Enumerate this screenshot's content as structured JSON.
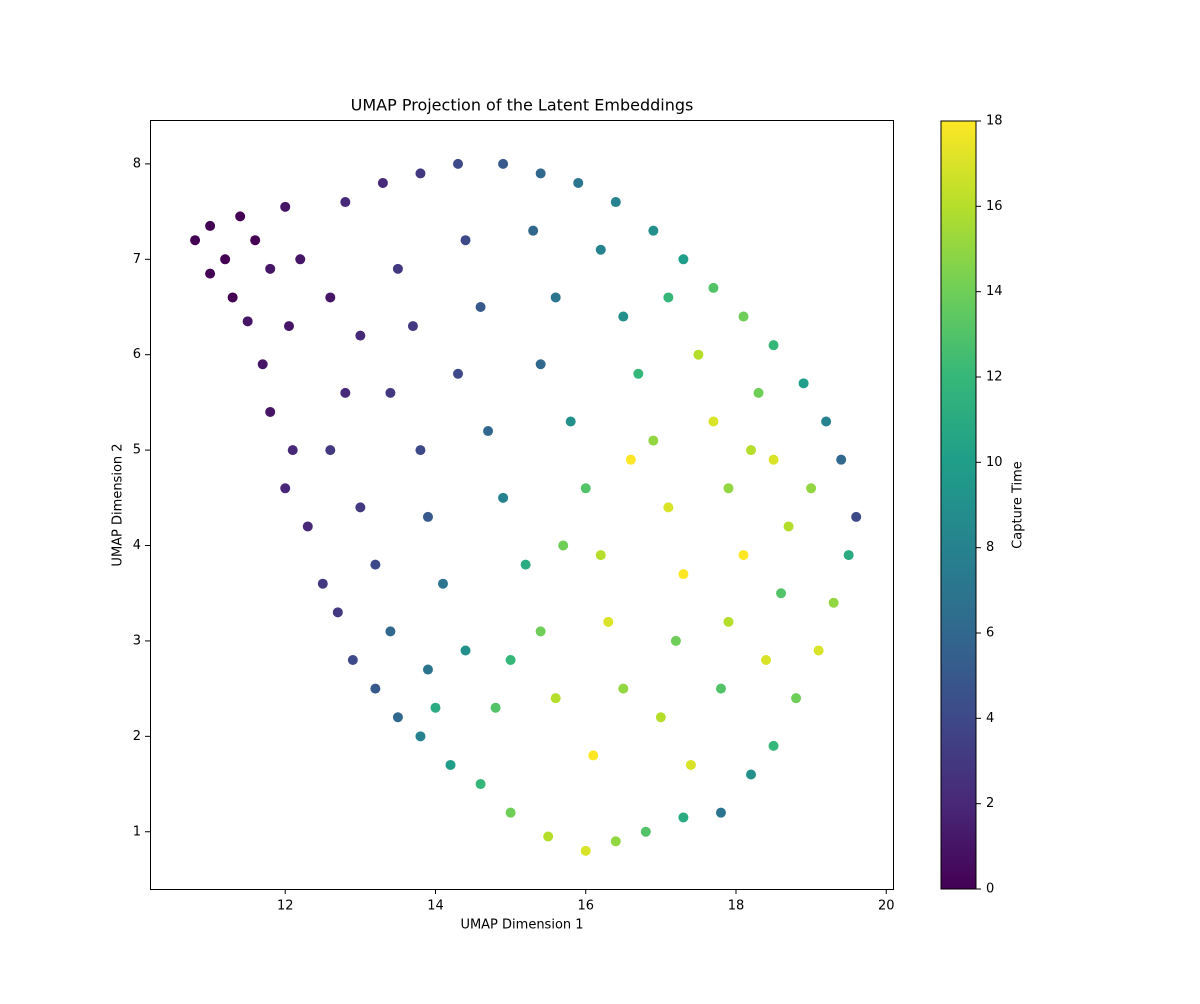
{
  "chart_data": {
    "type": "scatter",
    "title": "UMAP Projection of the Latent Embeddings",
    "x_label": "UMAP Dimension 1",
    "y_label": "UMAP Dimension 2",
    "colorbar_label": "Capture Time",
    "xlim": [
      10.2,
      20.09
    ],
    "ylim": [
      0.4,
      8.46
    ],
    "xticks": [
      12,
      14,
      16,
      18,
      20
    ],
    "yticks": [
      1,
      2,
      3,
      4,
      5,
      6,
      7,
      8
    ],
    "clim": [
      0,
      18
    ],
    "cticks": [
      0,
      2,
      4,
      6,
      8,
      10,
      12,
      14,
      16,
      18
    ],
    "colormap": [
      "#440154",
      "#482878",
      "#3e4989",
      "#31688e",
      "#26828e",
      "#1f9e89",
      "#35b779",
      "#6ece58",
      "#b5de2b",
      "#fde725"
    ],
    "x": [
      10.8,
      11.0,
      11.2,
      11.4,
      11.6,
      11.3,
      11.0,
      11.8,
      11.5,
      12.0,
      12.2,
      11.7,
      12.05,
      11.8,
      12.1,
      12.0,
      12.3,
      12.5,
      12.7,
      12.9,
      13.2,
      13.5,
      13.8,
      14.2,
      14.6,
      15.0,
      15.5,
      16.0,
      16.4,
      16.8,
      17.3,
      17.8,
      12.8,
      13.3,
      13.8,
      14.3,
      14.9,
      15.4,
      15.9,
      16.4,
      16.9,
      17.3,
      17.7,
      18.1,
      18.5,
      18.9,
      19.2,
      19.4,
      19.6,
      19.5,
      19.3,
      19.1,
      18.8,
      18.5,
      18.2,
      12.6,
      13.0,
      12.8,
      12.6,
      13.0,
      13.2,
      13.4,
      13.9,
      13.5,
      13.7,
      13.4,
      13.8,
      13.9,
      14.1,
      14.4,
      14.8,
      14.4,
      14.6,
      14.3,
      14.7,
      14.9,
      15.2,
      15.4,
      15.6,
      15.3,
      15.6,
      15.4,
      15.8,
      16.0,
      16.2,
      16.3,
      16.5,
      16.1,
      16.2,
      16.5,
      16.7,
      16.9,
      17.1,
      17.3,
      17.2,
      17.0,
      17.4,
      17.1,
      17.5,
      17.7,
      17.9,
      18.1,
      17.9,
      17.8,
      18.3,
      18.5,
      18.7,
      18.6,
      18.4,
      19.0,
      15.0,
      14.0,
      15.7,
      16.6,
      18.2
    ],
    "y": [
      7.2,
      7.35,
      7.0,
      7.45,
      7.2,
      6.6,
      6.85,
      6.9,
      6.35,
      7.55,
      7.0,
      5.9,
      6.3,
      5.4,
      5.0,
      4.6,
      4.2,
      3.6,
      3.3,
      2.8,
      2.5,
      2.2,
      2.0,
      1.7,
      1.5,
      1.2,
      0.95,
      0.8,
      0.9,
      1.0,
      1.15,
      1.2,
      7.6,
      7.8,
      7.9,
      8.0,
      8.0,
      7.9,
      7.8,
      7.6,
      7.3,
      7.0,
      6.7,
      6.4,
      6.1,
      5.7,
      5.3,
      4.9,
      4.3,
      3.9,
      3.4,
      2.9,
      2.4,
      1.9,
      1.6,
      6.6,
      6.2,
      5.6,
      5.0,
      4.4,
      3.8,
      3.1,
      2.7,
      6.9,
      6.3,
      5.6,
      5.0,
      4.3,
      3.6,
      2.9,
      2.3,
      7.2,
      6.5,
      5.8,
      5.2,
      4.5,
      3.8,
      3.1,
      2.4,
      7.3,
      6.6,
      5.9,
      5.3,
      4.6,
      3.9,
      3.2,
      2.5,
      1.8,
      7.1,
      6.4,
      5.8,
      5.1,
      4.4,
      3.7,
      3.0,
      2.2,
      1.7,
      6.6,
      6.0,
      5.3,
      4.6,
      3.9,
      3.2,
      2.5,
      5.6,
      4.9,
      4.2,
      3.5,
      2.8,
      4.6,
      2.8,
      2.3,
      4.0,
      4.9,
      5.0
    ],
    "c": [
      0,
      0,
      0,
      0,
      0,
      0,
      0,
      1,
      1,
      1,
      1,
      1,
      1,
      1,
      2,
      2,
      2,
      3,
      3,
      4,
      5,
      6,
      8,
      10,
      12,
      14,
      16,
      17,
      15,
      13,
      11,
      7,
      2,
      2,
      3,
      4,
      5,
      6,
      7,
      8,
      9,
      10,
      13,
      14,
      12,
      10,
      8,
      6,
      4,
      11,
      15,
      17,
      14,
      12,
      9,
      1,
      2,
      2,
      3,
      3,
      4,
      6,
      7,
      3,
      3,
      3,
      4,
      5,
      7,
      9,
      13,
      4,
      5,
      4,
      6,
      8,
      11,
      14,
      16,
      6,
      7,
      6,
      9,
      13,
      16,
      17,
      15,
      18,
      8,
      9,
      12,
      15,
      17,
      18,
      14,
      16,
      17,
      12,
      16,
      17,
      15,
      18,
      16,
      13,
      14,
      17,
      16,
      13,
      17,
      15,
      12,
      11,
      14,
      18,
      16
    ]
  }
}
